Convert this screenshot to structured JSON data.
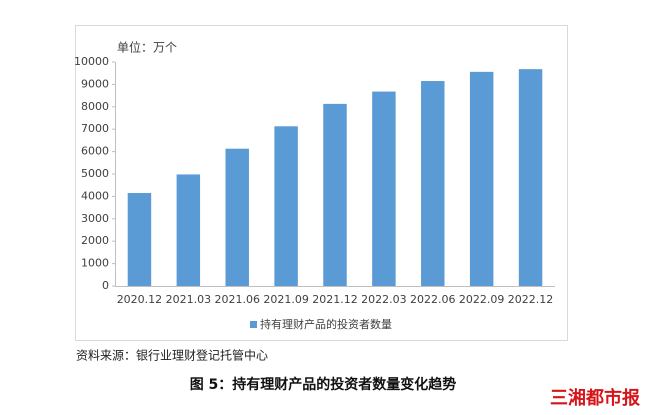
{
  "chart_data": {
    "type": "bar",
    "unit_label": "单位：万个",
    "categories": [
      "2020.12",
      "2021.03",
      "2021.06",
      "2021.09",
      "2021.12",
      "2022.03",
      "2022.06",
      "2022.09",
      "2022.12"
    ],
    "series": [
      {
        "name": "持有理财产品的投资者数量",
        "color": "#5b9bd5",
        "values": [
          4150,
          4980,
          6130,
          7130,
          8130,
          8680,
          9150,
          9560,
          9680
        ]
      }
    ],
    "ylim": [
      0,
      10000
    ],
    "yticks": [
      0,
      1000,
      2000,
      3000,
      4000,
      5000,
      6000,
      7000,
      8000,
      9000,
      10000
    ],
    "grid": false,
    "legend": "bottom"
  },
  "source": "资料来源：银行业理财登记托管中心",
  "caption": "图 5：持有理财产品的投资者数量变化趋势",
  "logo": "三湘都市报"
}
